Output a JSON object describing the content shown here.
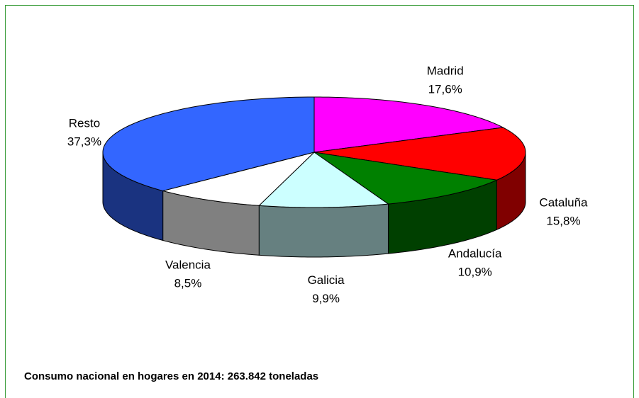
{
  "chart_data": {
    "type": "pie",
    "categories": [
      "Madrid",
      "Cataluña",
      "Andalucía",
      "Galicia",
      "Valencia",
      "Resto"
    ],
    "values": [
      17.6,
      15.8,
      10.9,
      9.9,
      8.5,
      37.3
    ],
    "value_labels": [
      "17,6%",
      "15,8%",
      "10,9%",
      "9,9%",
      "8,5%",
      "37,3%"
    ],
    "colors": [
      "#ff00ff",
      "#ff0000",
      "#008000",
      "#ccffff",
      "#ffffff",
      "#3366ff"
    ],
    "annotation": "Consumo nacional en hogares en 2014: 263.842 toneladas"
  }
}
